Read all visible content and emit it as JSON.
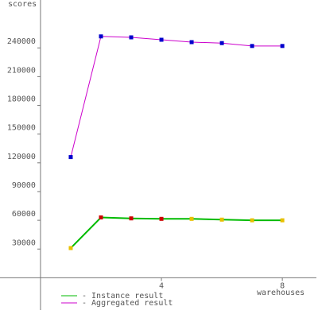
{
  "chart_data": {
    "type": "line",
    "ylabel": "scores",
    "xlabel": "warehouses",
    "x": [
      1,
      2,
      3,
      4,
      5,
      6,
      7,
      8
    ],
    "series": [
      {
        "name": "- Instance result",
        "color": "#00bb00",
        "values": [
          31000,
          63000,
          62000,
          61500,
          61500,
          60700,
          60000,
          60000
        ],
        "marker_colors": [
          "#e8c000",
          "#cc0000",
          "#cc0000",
          "#cc0000",
          "#e8c000",
          "#e8c000",
          "#e8c000",
          "#e8c000"
        ]
      },
      {
        "name": "- Aggregated result",
        "color": "#cc00cc",
        "values": [
          126000,
          252000,
          251000,
          248500,
          246000,
          245000,
          242000,
          242000
        ],
        "marker_colors": [
          "#0000cc",
          "#0000cc",
          "#0000cc",
          "#0000cc",
          "#0000cc",
          "#0000cc",
          "#0000cc",
          "#0000cc"
        ]
      }
    ],
    "xlim": [
      -1.34,
      9.18
    ],
    "ylim": [
      -42000,
      290000
    ],
    "xticks": [
      4,
      8
    ],
    "yticks": [
      30000,
      60000,
      90000,
      120000,
      150000,
      180000,
      210000,
      240000
    ]
  }
}
